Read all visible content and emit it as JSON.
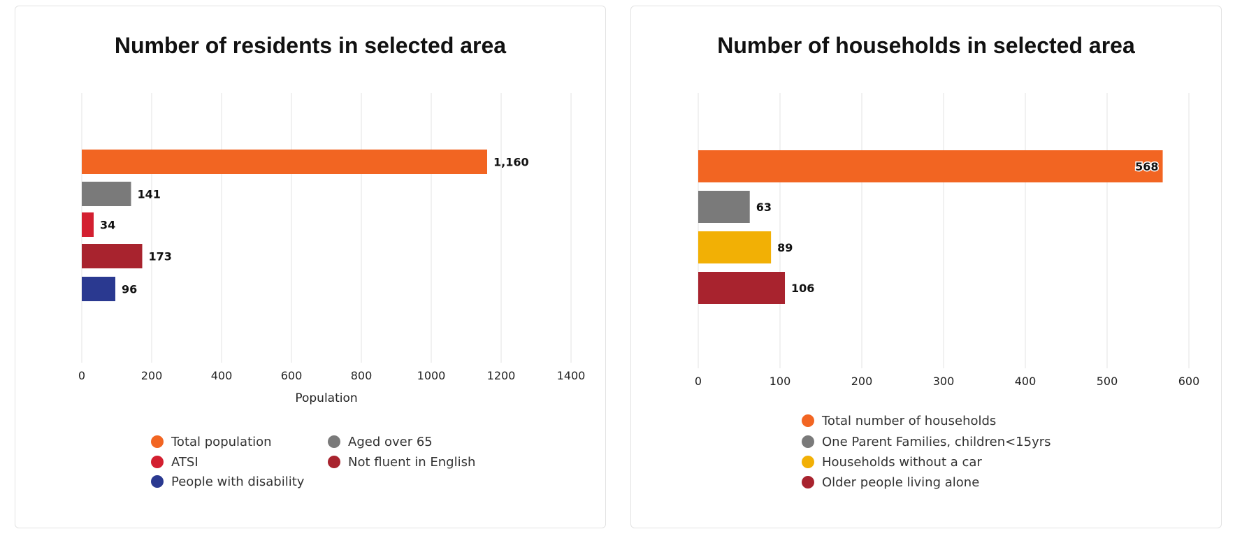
{
  "chart_data": [
    {
      "type": "bar",
      "orientation": "horizontal",
      "title": "Number of residents in selected area",
      "xlabel": "Population",
      "ylabel": "",
      "xlim": [
        0,
        1400
      ],
      "xticks": [
        0,
        200,
        400,
        600,
        800,
        1000,
        1200,
        1400
      ],
      "grid": true,
      "legend_placement": "bottom",
      "legend_columns": 2,
      "categories": [
        "Total population",
        "Aged over 65",
        "ATSI",
        "Not fluent in English",
        "People with disability"
      ],
      "values": [
        1160,
        141,
        34,
        173,
        96
      ],
      "value_labels": [
        "1,160",
        "141",
        "34",
        "173",
        "96"
      ],
      "colors": [
        "#f26522",
        "#7a7a7a",
        "#d31f30",
        "#a8232e",
        "#2a3990"
      ]
    },
    {
      "type": "bar",
      "orientation": "horizontal",
      "title": "Number of households in selected area",
      "xlabel": "",
      "ylabel": "",
      "xlim": [
        0,
        600
      ],
      "xticks": [
        0,
        100,
        200,
        300,
        400,
        500,
        600
      ],
      "grid": true,
      "legend_placement": "bottom",
      "legend_columns": 1,
      "categories": [
        "Total number of households",
        "One Parent Families, children<15yrs",
        "Households without a car",
        "Older people living alone"
      ],
      "values": [
        568,
        63,
        89,
        106
      ],
      "value_labels": [
        "568",
        "63",
        "89",
        "106"
      ],
      "colors": [
        "#f26522",
        "#7a7a7a",
        "#f2b005",
        "#a8232e"
      ]
    }
  ]
}
